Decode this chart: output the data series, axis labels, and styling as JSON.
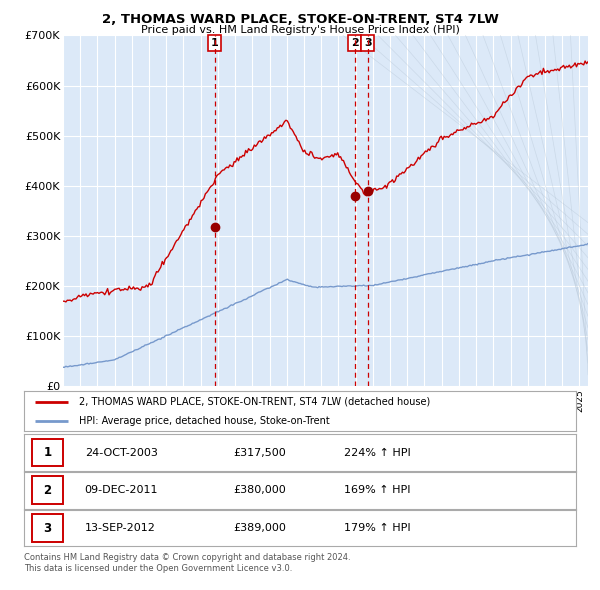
{
  "title": "2, THOMAS WARD PLACE, STOKE-ON-TRENT, ST4 7LW",
  "subtitle": "Price paid vs. HM Land Registry's House Price Index (HPI)",
  "legend_line1": "2, THOMAS WARD PLACE, STOKE-ON-TRENT, ST4 7LW (detached house)",
  "legend_line2": "HPI: Average price, detached house, Stoke-on-Trent",
  "table_rows": [
    [
      "1",
      "24-OCT-2003",
      "£317,500",
      "224% ↑ HPI"
    ],
    [
      "2",
      "09-DEC-2011",
      "£380,000",
      "169% ↑ HPI"
    ],
    [
      "3",
      "13-SEP-2012",
      "£389,000",
      "179% ↑ HPI"
    ]
  ],
  "footer": "Contains HM Land Registry data © Crown copyright and database right 2024.\nThis data is licensed under the Open Government Licence v3.0.",
  "sale1_date": 2003.81,
  "sale1_price": 317500,
  "sale2_date": 2011.94,
  "sale2_price": 380000,
  "sale3_date": 2012.71,
  "sale3_price": 389000,
  "vline1": 2003.81,
  "vline2": 2011.94,
  "vline3": 2012.71,
  "ylim": [
    0,
    700000
  ],
  "xlim_start": 1995.0,
  "xlim_end": 2025.5,
  "bg_color": "#dce9f8",
  "red_line_color": "#cc0000",
  "blue_line_color": "#7799cc",
  "marker_color": "#990000",
  "vline_color_red": "#cc0000",
  "box_edge_color": "#cc0000",
  "grid_color": "#ffffff"
}
